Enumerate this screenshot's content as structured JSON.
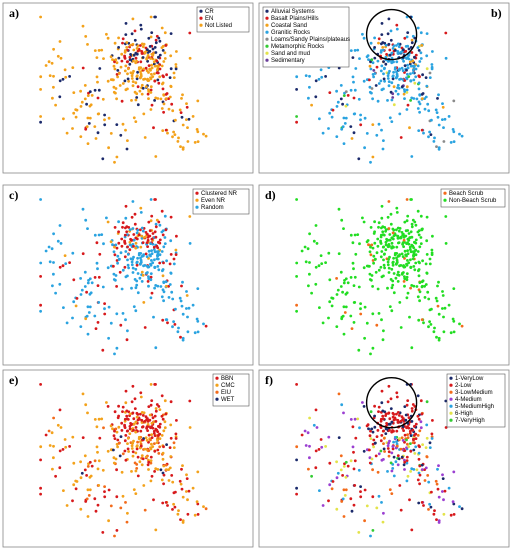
{
  "chart_data": [
    {
      "type": "scatter",
      "panel_label": "a)",
      "legend": {
        "placement": "top-right",
        "entries": [
          {
            "label": "CR",
            "color": "#1b2a6b"
          },
          {
            "label": "EN",
            "color": "#d7191c"
          },
          {
            "label": "Not Listed",
            "color": "#f3a21b"
          }
        ]
      },
      "annotations": [],
      "series_color_weights": [
        {
          "label": "CR",
          "weight": 0.12
        },
        {
          "label": "EN",
          "weight": 0.1
        },
        {
          "label": "Not Listed",
          "weight": 0.78
        }
      ]
    },
    {
      "type": "scatter",
      "panel_label": "b)",
      "legend": {
        "placement": "top-left",
        "entries": [
          {
            "label": "Alluvial Systems",
            "color": "#1b2a6b"
          },
          {
            "label": "Basalt Plains/Hills",
            "color": "#d7191c"
          },
          {
            "label": "Coastal Sand",
            "color": "#f3a21b"
          },
          {
            "label": "Granitic Rocks",
            "color": "#2aa3e0"
          },
          {
            "label": "Loams/Sandy Plains/plateaus",
            "color": "#8b8b8b"
          },
          {
            "label": "Metamorphic Rocks",
            "color": "#33cc33"
          },
          {
            "label": "Sand and mud",
            "color": "#e3e34a"
          },
          {
            "label": "Sedimentary",
            "color": "#6a3d9a"
          }
        ]
      },
      "annotations": [
        "circle-highlight"
      ],
      "series_color_weights": [
        {
          "label": "Alluvial Systems",
          "weight": 0.1
        },
        {
          "label": "Basalt Plains/Hills",
          "weight": 0.06
        },
        {
          "label": "Coastal Sand",
          "weight": 0.04
        },
        {
          "label": "Granitic Rocks",
          "weight": 0.72
        },
        {
          "label": "Loams/Sandy Plains/plateaus",
          "weight": 0.02
        },
        {
          "label": "Metamorphic Rocks",
          "weight": 0.02
        },
        {
          "label": "Sand and mud",
          "weight": 0.02
        },
        {
          "label": "Sedimentary",
          "weight": 0.02
        }
      ]
    },
    {
      "type": "scatter",
      "panel_label": "c)",
      "legend": {
        "placement": "top-right",
        "entries": [
          {
            "label": "Clustered NR",
            "color": "#d7191c"
          },
          {
            "label": "Even NR",
            "color": "#f3a21b"
          },
          {
            "label": "Random",
            "color": "#2aa3e0"
          }
        ]
      },
      "annotations": [],
      "series_color_weights": [
        {
          "label": "Clustered NR",
          "weight": 0.18
        },
        {
          "label": "Even NR",
          "weight": 0.06
        },
        {
          "label": "Random",
          "weight": 0.76
        }
      ]
    },
    {
      "type": "scatter",
      "panel_label": "d)",
      "legend": {
        "placement": "top-right",
        "entries": [
          {
            "label": "Beach Scrub",
            "color": "#f36b1b"
          },
          {
            "label": "Non-Beach Scrub",
            "color": "#22dd22"
          }
        ]
      },
      "annotations": [],
      "series_color_weights": [
        {
          "label": "Beach Scrub",
          "weight": 0.06
        },
        {
          "label": "Non-Beach Scrub",
          "weight": 0.94
        }
      ]
    },
    {
      "type": "scatter",
      "panel_label": "e)",
      "legend": {
        "placement": "top-right",
        "entries": [
          {
            "label": "BBN",
            "color": "#d7191c"
          },
          {
            "label": "CMC",
            "color": "#f3a21b"
          },
          {
            "label": "EIU",
            "color": "#f36b1b"
          },
          {
            "label": "WET",
            "color": "#1b2a6b"
          }
        ]
      },
      "annotations": [],
      "series_color_weights": [
        {
          "label": "BBN",
          "weight": 0.3
        },
        {
          "label": "CMC",
          "weight": 0.52
        },
        {
          "label": "EIU",
          "weight": 0.15
        },
        {
          "label": "WET",
          "weight": 0.03
        }
      ]
    },
    {
      "type": "scatter",
      "panel_label": "f)",
      "legend": {
        "placement": "top-right",
        "entries": [
          {
            "label": "1-VeryLow",
            "color": "#1b2a6b"
          },
          {
            "label": "2-Low",
            "color": "#d7191c"
          },
          {
            "label": "3-LowMedium",
            "color": "#f36b1b"
          },
          {
            "label": "4-Medium",
            "color": "#9b3fd1"
          },
          {
            "label": "5-MediumHigh",
            "color": "#2aa3e0"
          },
          {
            "label": "6-High",
            "color": "#e3e34a"
          },
          {
            "label": "7-VeryHigh",
            "color": "#33cc33"
          }
        ]
      },
      "annotations": [
        "circle-highlight"
      ],
      "series_color_weights": [
        {
          "label": "1-VeryLow",
          "weight": 0.1
        },
        {
          "label": "2-Low",
          "weight": 0.25
        },
        {
          "label": "3-LowMedium",
          "weight": 0.15
        },
        {
          "label": "4-Medium",
          "weight": 0.2
        },
        {
          "label": "5-MediumHigh",
          "weight": 0.15
        },
        {
          "label": "6-High",
          "weight": 0.1
        },
        {
          "label": "7-VeryHigh",
          "weight": 0.05
        }
      ]
    }
  ]
}
